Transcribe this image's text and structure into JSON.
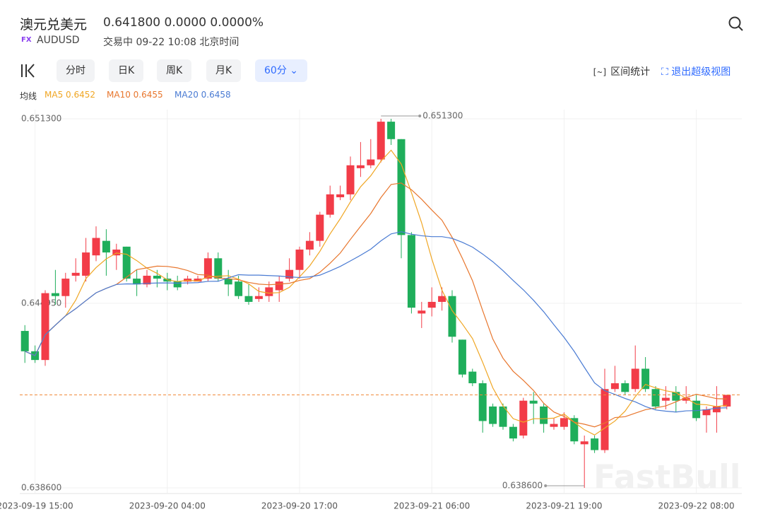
{
  "header": {
    "title": "澳元兑美元",
    "price": "0.641800",
    "change": "0.0000",
    "change_pct": "0.0000%",
    "badge": "FX",
    "symbol": "AUDUSD",
    "status": "交易中 09-22 10:08 北京时间"
  },
  "toolbar": {
    "tabs": [
      "分时",
      "日K",
      "周K",
      "月K",
      "60分"
    ],
    "active": 4,
    "tools": [
      "区间统计",
      "退出超级视图"
    ]
  },
  "watermark": "FastBull",
  "chart_data": {
    "type": "candlestick",
    "up_color": "#f23c48",
    "down_color": "#1fae5b",
    "categories": [
      null,
      "2023-09-19 15:00",
      null,
      null,
      null,
      null,
      null,
      null,
      null,
      null,
      null,
      null,
      null,
      null,
      "2023-09-20 04:00",
      null,
      null,
      null,
      null,
      null,
      null,
      null,
      null,
      null,
      null,
      null,
      null,
      "2023-09-20 17:00",
      null,
      null,
      null,
      null,
      null,
      null,
      null,
      null,
      null,
      null,
      null,
      null,
      "2023-09-21 06:00",
      null,
      null,
      null,
      null,
      null,
      null,
      null,
      null,
      null,
      null,
      null,
      null,
      "2023-09-21 19:00",
      null,
      null,
      null,
      null,
      null,
      null,
      null,
      null,
      null,
      null,
      null,
      null,
      "2023-09-22 08:00",
      null,
      null,
      null
    ],
    "open": [
      0.644,
      0.6433,
      0.643,
      0.6453,
      0.6452,
      0.6459,
      0.6459,
      0.6466,
      0.6471,
      0.6466,
      0.6469,
      0.6458,
      0.6456,
      0.6459,
      0.6458,
      0.6457,
      0.6457,
      0.6457,
      0.6458,
      0.6465,
      0.6458,
      0.6457,
      0.6452,
      0.6451,
      0.6452,
      0.6454,
      0.6458,
      0.6461,
      0.6468,
      0.6471,
      0.648,
      0.6486,
      0.6487,
      0.6496,
      0.6497,
      0.6499,
      0.6512,
      0.6506,
      0.6473,
      0.6446,
      0.6448,
      0.645,
      0.6452,
      0.6437,
      0.6426,
      0.6422,
      0.6414,
      0.6414,
      0.6407,
      0.6404,
      0.6416,
      0.6414,
      0.6407,
      0.6407,
      0.641,
      0.6401,
      0.6403,
      0.6399,
      0.642,
      0.6422,
      0.642,
      0.6427,
      0.642,
      0.6416,
      0.6419,
      0.6416,
      0.6416,
      0.6411,
      0.6412,
      0.6414
    ],
    "high": [
      0.6442,
      0.6435,
      0.6454,
      0.6461,
      0.646,
      0.6465,
      0.6472,
      0.6476,
      0.6475,
      0.647,
      0.6469,
      0.6461,
      0.6461,
      0.6461,
      0.646,
      0.6459,
      0.6459,
      0.6459,
      0.6467,
      0.6467,
      0.6461,
      0.6459,
      0.6456,
      0.6455,
      0.6457,
      0.6459,
      0.6465,
      0.6469,
      0.6474,
      0.6481,
      0.649,
      0.649,
      0.65,
      0.6505,
      0.6506,
      0.6513,
      0.6513,
      0.6506,
      0.6474,
      0.645,
      0.6455,
      0.6455,
      0.6454,
      0.6437,
      0.6427,
      0.6423,
      0.6415,
      0.6415,
      0.6408,
      0.6417,
      0.6419,
      0.6415,
      0.641,
      0.6412,
      0.6411,
      0.6404,
      0.6404,
      0.6427,
      0.6428,
      0.6423,
      0.6435,
      0.6431,
      0.6421,
      0.6421,
      0.6421,
      0.6421,
      0.6418,
      0.6414,
      0.6421,
      0.6418
    ],
    "low": [
      0.6429,
      0.6429,
      0.6428,
      0.6449,
      0.6448,
      0.6457,
      0.6457,
      0.6464,
      0.6459,
      0.6461,
      0.6457,
      0.6452,
      0.6455,
      0.6455,
      0.6454,
      0.6454,
      0.6456,
      0.6457,
      0.6457,
      0.6457,
      0.6452,
      0.6451,
      0.6449,
      0.645,
      0.645,
      0.645,
      0.6457,
      0.6458,
      0.6466,
      0.6469,
      0.6479,
      0.6485,
      0.6485,
      0.6493,
      0.6496,
      0.6498,
      0.6504,
      0.6465,
      0.6446,
      0.6441,
      0.6445,
      0.6447,
      0.6436,
      0.6424,
      0.6421,
      0.6405,
      0.6407,
      0.6406,
      0.6402,
      0.6403,
      0.6408,
      0.6405,
      0.6406,
      0.6406,
      0.6401,
      0.6386,
      0.6398,
      0.6398,
      0.6419,
      0.6418,
      0.6419,
      0.6419,
      0.6413,
      0.6413,
      0.6412,
      0.6415,
      0.6409,
      0.6405,
      0.6405,
      0.6413
    ],
    "close": [
      0.6433,
      0.643,
      0.6453,
      0.6452,
      0.6458,
      0.646,
      0.6467,
      0.6472,
      0.6467,
      0.6468,
      0.6458,
      0.6456,
      0.6459,
      0.6458,
      0.6457,
      0.6455,
      0.6458,
      0.6458,
      0.6465,
      0.6458,
      0.6456,
      0.6452,
      0.645,
      0.6452,
      0.6455,
      0.6457,
      0.6461,
      0.6468,
      0.6471,
      0.648,
      0.6487,
      0.6487,
      0.6497,
      0.6497,
      0.6499,
      0.6512,
      0.6506,
      0.6473,
      0.6448,
      0.6447,
      0.645,
      0.6452,
      0.6438,
      0.6425,
      0.6422,
      0.6409,
      0.6408,
      0.6407,
      0.6403,
      0.6416,
      0.6415,
      0.6408,
      0.6408,
      0.641,
      0.6402,
      0.6402,
      0.6399,
      0.642,
      0.6422,
      0.6419,
      0.6427,
      0.642,
      0.6414,
      0.6417,
      0.6416,
      0.6417,
      0.641,
      0.6413,
      0.6414,
      0.6418
    ],
    "ylim": [
      0.6386,
      0.6513
    ],
    "yticks": [
      {
        "value": 0.6513,
        "label": "0.651300"
      },
      {
        "value": 0.64495,
        "label": "0.644950"
      },
      {
        "value": 0.6386,
        "label": "0.638600"
      }
    ],
    "max_label": "0.651300",
    "min_label": "0.638600",
    "ma_title": "均线",
    "moving_averages": [
      {
        "name": "MA5",
        "value": 0.6452,
        "color": "#f0a623"
      },
      {
        "name": "MA10",
        "value": 0.6455,
        "color": "#e8762d"
      },
      {
        "name": "MA20",
        "value": 0.6458,
        "color": "#4a7bd3"
      }
    ],
    "last_line_color": "#f08a3a",
    "grid": true
  }
}
